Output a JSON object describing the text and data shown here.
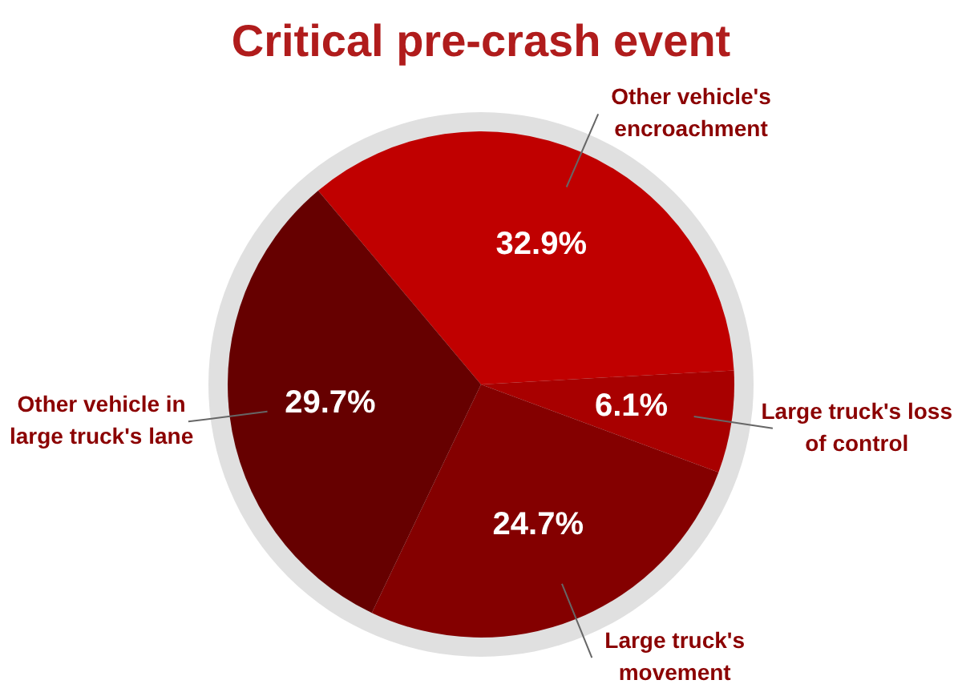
{
  "chart_data": {
    "type": "pie",
    "title": "Critical pre-crash event",
    "categories": [
      "Other vehicle's encroachment",
      "Large truck's loss of control",
      "Large truck's movement",
      "Other vehicle in large truck's lane"
    ],
    "values": [
      32.9,
      6.1,
      24.7,
      29.7
    ],
    "value_labels": [
      "32.9%",
      "6.1%",
      "24.7%",
      "29.7%"
    ],
    "colors": [
      "#c00000",
      "#a80000",
      "#840000",
      "#660000"
    ],
    "legend": false
  }
}
